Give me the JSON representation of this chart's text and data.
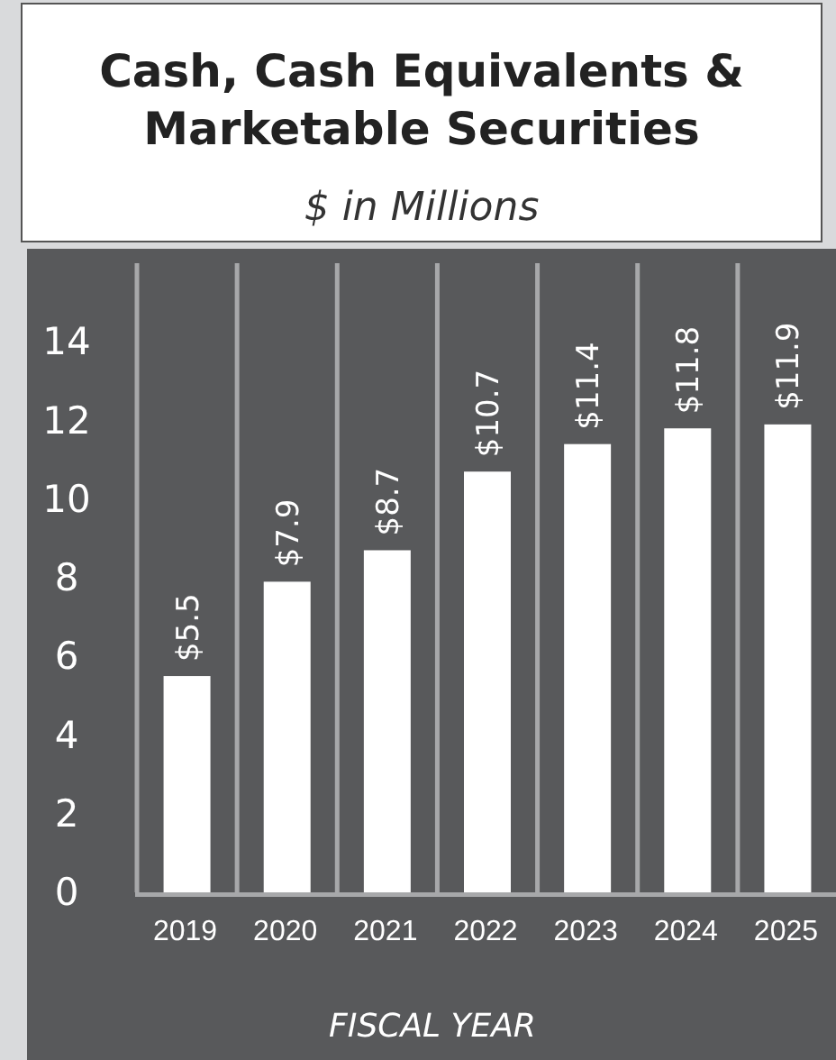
{
  "chart_data": {
    "type": "bar",
    "title": "Cash, Cash Equivalents & Marketable Securities",
    "subtitle": "$ in Millions",
    "xlabel": "FISCAL YEAR",
    "categories": [
      "2019",
      "2020",
      "2021",
      "2022",
      "2023",
      "2024",
      "2025"
    ],
    "values": [
      5.5,
      7.9,
      8.7,
      10.7,
      11.4,
      11.8,
      11.9
    ],
    "value_labels": [
      "$5.5",
      "$7.9",
      "$8.7",
      "$10.7",
      "$11.4",
      "$11.8",
      "$11.9"
    ],
    "color": "#ffffff",
    "ylim": [
      0,
      16
    ],
    "yticks": [
      0,
      2,
      4,
      6,
      8,
      10,
      12,
      14
    ],
    "grid": "x"
  }
}
